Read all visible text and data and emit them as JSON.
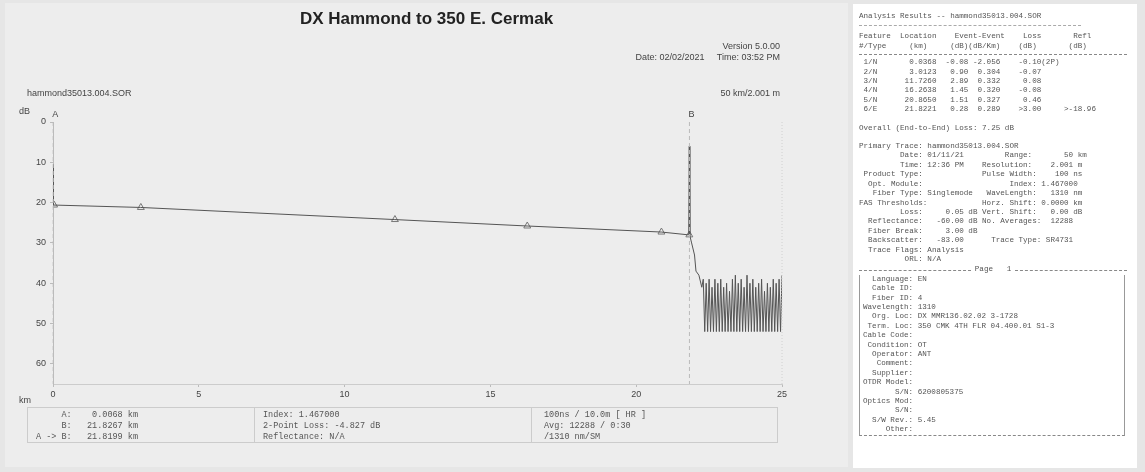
{
  "chart_data": [
    {
      "type": "line",
      "title": "DX Hammond to 350 E. Cermak",
      "xlabel": "km",
      "ylabel": "dB",
      "xlim": [
        0,
        25
      ],
      "ylim": [
        65,
        0
      ],
      "xticks": [
        0,
        5,
        10,
        15,
        20,
        25
      ],
      "yticks": [
        0,
        10,
        20,
        30,
        40,
        50,
        60
      ],
      "grid": false,
      "series": [
        {
          "type": "line",
          "color": "#555555",
          "marker": "none",
          "x": [
            0,
            0.01,
            3.0,
            11.7,
            16.26,
            20.86,
            21.8,
            21.82,
            21.84,
            21.9,
            22.0,
            22.05,
            22.15,
            22.25,
            22.3,
            22.35,
            22.4,
            22.45,
            22.5,
            22.55,
            22.6,
            22.65,
            22.7,
            22.75,
            22.8,
            22.85,
            22.9,
            22.95,
            23.0,
            23.05,
            23.1,
            23.15,
            23.2,
            23.25,
            23.3,
            23.35,
            23.4,
            23.45,
            23.5,
            23.55,
            23.6,
            23.65,
            23.7,
            23.75,
            23.8,
            23.85,
            23.9,
            23.95,
            24.0,
            24.05,
            24.1,
            24.15,
            24.2,
            24.25,
            24.3,
            24.35,
            24.4,
            24.45,
            24.5,
            24.55,
            24.6,
            24.65,
            24.7,
            24.75,
            24.8,
            24.85,
            24.9,
            24.95,
            25.0
          ],
          "values": [
            10.5,
            20.6,
            21.2,
            24.2,
            25.8,
            27.3,
            28.0,
            6,
            28.2,
            30,
            33,
            37,
            38,
            41,
            39,
            52,
            40,
            52,
            39,
            52,
            41,
            52,
            39,
            52,
            40,
            52,
            39,
            52,
            41,
            52,
            40,
            52,
            42,
            52,
            39,
            52,
            38,
            52,
            40,
            52,
            39,
            52,
            41,
            52,
            38,
            52,
            40,
            52,
            39,
            52,
            41,
            52,
            40,
            52,
            39,
            52,
            42,
            52,
            40,
            52,
            41,
            52,
            39,
            52,
            40,
            52,
            39,
            52,
            38
          ]
        },
        {
          "type": "scatter",
          "color": "#777777",
          "marker": "triangle",
          "x": [
            0.0368,
            3.0123,
            11.726,
            16.2638,
            20.865,
            21.8221
          ],
          "values": [
            20.6,
            21.2,
            24.2,
            25.8,
            27.3,
            28.0
          ]
        }
      ],
      "ref_lines": [
        {
          "axis": "x",
          "value": 0.0068,
          "label": "A",
          "color": "#bbbbbb",
          "line_style": "dashed"
        },
        {
          "axis": "x",
          "value": 21.8267,
          "label": "B",
          "color": "#bbbbbb",
          "line_style": "dashed"
        }
      ],
      "annotations": [
        "Version 5.0.00\nDate: 02/02/2021     Time: 03:52 PM",
        "hammond35013.004.SOR",
        "50 km/2.001 m",
        "     A:    0.0068 km\n     B:   21.8267 km\nA -> B:   21.8199 km",
        "Index: 1.467000\n2-Point Loss: -4.827 dB\nReflectance: N/A",
        "100ns / 10.0m [ HR ]\nAvg: 12288 / 0:30\n/1310 nm/SM"
      ]
    },
    {
      "type": "other",
      "title": "Analysis Results -- hammond35013.004.SOR",
      "annotations": [
        "Feature  Location    Event-Event    Loss       Refl\n#/Type     (km)     (dB)(dB/Km)    (dB)       (dB)",
        " 1/N       0.0368  -0.08 -2.056    -0.10(2P)\n 2/N       3.0123   0.90  0.304    -0.07\n 3/N      11.7260   2.89  0.332     0.08\n 4/N      16.2638   1.45  0.320    -0.08\n 5/N      20.8650   1.51  0.327     0.46\n 6/E      21.8221   0.28  0.289    >3.00     >-18.96",
        "Overall (End-to-End) Loss: 7.25 dB",
        "Primary Trace: hammond35013.004.SOR\n         Date: 01/11/21         Range:       50 km\n         Time: 12:36 PM    Resolution:    2.001 m\n Product Type:             Pulse Width:    100 ns\n  Opt. Module:                   Index: 1.467000\n   Fiber Type: Singlemode   WaveLength:   1310 nm\nFAS Thresholds:            Horz. Shift: 0.0000 km\n         Loss:     0.05 dB Vert. Shift:   0.00 dB\n  Reflectance:   -60.00 dB No. Averages:  12288\n  Fiber Break:     3.00 dB\n  Backscatter:   -83.00      Trace Type: SR4731\n  Trace Flags: Analysis\n          ORL: N/A",
        "Page   1",
        "  Language: EN\n  Cable ID:\n  Fiber ID: 4\nWavelength: 1310\n  Org. Loc: DX MMR136.02.02 3-1728\n Term. Loc: 350 CMK 4TH FLR 04.400.01 S1-3\nCable Code:\n Condition: OT\n  Operator: ANT\n   Comment:\n  Supplier:\nOTDR Model:\n       S/N: 6200805375\nOptics Mod:\n       S/N:\n  S/W Rev.: 5.45\n     Other:"
      ]
    }
  ]
}
